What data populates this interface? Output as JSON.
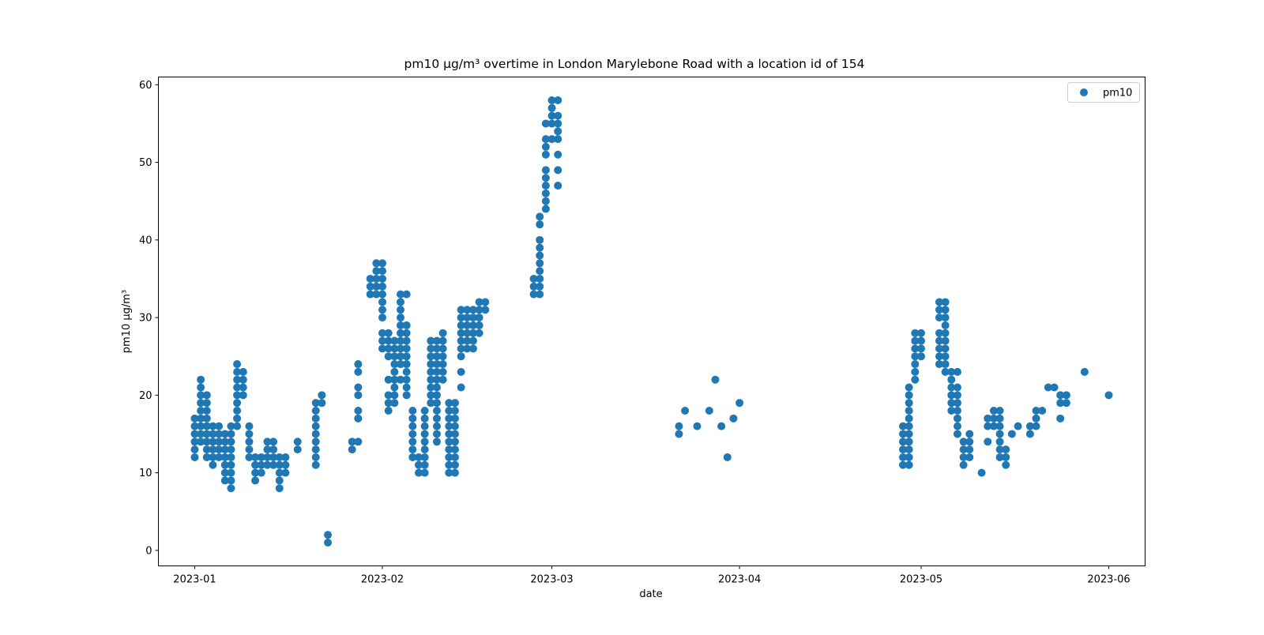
{
  "chart_data": {
    "type": "scatter",
    "title": "pm10 µg/m³ overtime in London Marylebone Road with a location id of 154",
    "xlabel": "date",
    "ylabel": "pm10 µg/m³",
    "x_axis": "date",
    "xlim": [
      "2022-12-26",
      "2023-06-07"
    ],
    "ylim": [
      -2,
      61
    ],
    "x_ticks": [
      "2023-01",
      "2023-02",
      "2023-03",
      "2023-04",
      "2023-05",
      "2023-06"
    ],
    "y_ticks": [
      0,
      10,
      20,
      30,
      40,
      50,
      60
    ],
    "grid": false,
    "legend": {
      "placement": "top-right",
      "entries": [
        "pm10"
      ]
    },
    "colors": {
      "series": "#1f77b4"
    },
    "series": [
      {
        "name": "pm10",
        "points": [
          {
            "x": "2023-01-01",
            "y": [
              12,
              13,
              14,
              15,
              16,
              17
            ]
          },
          {
            "x": "2023-01-02",
            "y": [
              14,
              15,
              16,
              17,
              18,
              19,
              20,
              21,
              22
            ]
          },
          {
            "x": "2023-01-03",
            "y": [
              12,
              13,
              14,
              15,
              16,
              17,
              18,
              19,
              20
            ]
          },
          {
            "x": "2023-01-04",
            "y": [
              11,
              12,
              13,
              14,
              15,
              16
            ]
          },
          {
            "x": "2023-01-05",
            "y": [
              12,
              13,
              14,
              15,
              16
            ]
          },
          {
            "x": "2023-01-06",
            "y": [
              9,
              10,
              11,
              12,
              13,
              14,
              15
            ]
          },
          {
            "x": "2023-01-07",
            "y": [
              8,
              9,
              10,
              11,
              12,
              13,
              14,
              15,
              16
            ]
          },
          {
            "x": "2023-01-08",
            "y": [
              16,
              17,
              18,
              19,
              20,
              21,
              22,
              23,
              24
            ]
          },
          {
            "x": "2023-01-09",
            "y": [
              20,
              21,
              22,
              23
            ]
          },
          {
            "x": "2023-01-10",
            "y": [
              12,
              13,
              14,
              15,
              16
            ]
          },
          {
            "x": "2023-01-11",
            "y": [
              9,
              10,
              11,
              12
            ]
          },
          {
            "x": "2023-01-12",
            "y": [
              10,
              11,
              12
            ]
          },
          {
            "x": "2023-01-13",
            "y": [
              11,
              12,
              13,
              14
            ]
          },
          {
            "x": "2023-01-14",
            "y": [
              11,
              12,
              13,
              14
            ]
          },
          {
            "x": "2023-01-15",
            "y": [
              8,
              9,
              10,
              11,
              12
            ]
          },
          {
            "x": "2023-01-16",
            "y": [
              10,
              11,
              12
            ]
          },
          {
            "x": "2023-01-18",
            "y": [
              13,
              14
            ]
          },
          {
            "x": "2023-01-21",
            "y": [
              11,
              12,
              13,
              14,
              15,
              16,
              17,
              18,
              19
            ]
          },
          {
            "x": "2023-01-22",
            "y": [
              19,
              20
            ]
          },
          {
            "x": "2023-01-23",
            "y": [
              1,
              2
            ]
          },
          {
            "x": "2023-01-27",
            "y": [
              13,
              14
            ]
          },
          {
            "x": "2023-01-28",
            "y": [
              14,
              17,
              18,
              20,
              21,
              23,
              24
            ]
          },
          {
            "x": "2023-01-30",
            "y": [
              33,
              34,
              35
            ]
          },
          {
            "x": "2023-01-31",
            "y": [
              33,
              34,
              35,
              36,
              37
            ]
          },
          {
            "x": "2023-02-01",
            "y": [
              26,
              27,
              28,
              30,
              31,
              32,
              33,
              34,
              35,
              36,
              37
            ]
          },
          {
            "x": "2023-02-02",
            "y": [
              18,
              19,
              20,
              22,
              25,
              26,
              27,
              28
            ]
          },
          {
            "x": "2023-02-03",
            "y": [
              19,
              20,
              21,
              22,
              23,
              24,
              25,
              26,
              27
            ]
          },
          {
            "x": "2023-02-04",
            "y": [
              22,
              24,
              25,
              26,
              27,
              28,
              29,
              30,
              31,
              32,
              33
            ]
          },
          {
            "x": "2023-02-05",
            "y": [
              20,
              21,
              22,
              23,
              24,
              25,
              26,
              27,
              28,
              29,
              33
            ]
          },
          {
            "x": "2023-02-06",
            "y": [
              12,
              13,
              14,
              15,
              16,
              17,
              18
            ]
          },
          {
            "x": "2023-02-07",
            "y": [
              10,
              11,
              12
            ]
          },
          {
            "x": "2023-02-08",
            "y": [
              10,
              11,
              12,
              13,
              14,
              15,
              16,
              17,
              18
            ]
          },
          {
            "x": "2023-02-09",
            "y": [
              19,
              20,
              21,
              22,
              23,
              24,
              25,
              26,
              27
            ]
          },
          {
            "x": "2023-02-10",
            "y": [
              14,
              15,
              16,
              17,
              18,
              19,
              20,
              21,
              22,
              23,
              24,
              25,
              26,
              27
            ]
          },
          {
            "x": "2023-02-11",
            "y": [
              22,
              23,
              24,
              25,
              26,
              27,
              28
            ]
          },
          {
            "x": "2023-02-12",
            "y": [
              10,
              11,
              12,
              13,
              14,
              15,
              16,
              17,
              18,
              19
            ]
          },
          {
            "x": "2023-02-13",
            "y": [
              10,
              11,
              12,
              13,
              14,
              15,
              16,
              17,
              18,
              19
            ]
          },
          {
            "x": "2023-02-14",
            "y": [
              21,
              23,
              25,
              26,
              27,
              28,
              29,
              30,
              31
            ]
          },
          {
            "x": "2023-02-15",
            "y": [
              26,
              27,
              28,
              29,
              30,
              31
            ]
          },
          {
            "x": "2023-02-16",
            "y": [
              26,
              27,
              28,
              29,
              30,
              31
            ]
          },
          {
            "x": "2023-02-17",
            "y": [
              28,
              29,
              30,
              31,
              32
            ]
          },
          {
            "x": "2023-02-18",
            "y": [
              31,
              32
            ]
          },
          {
            "x": "2023-02-26",
            "y": [
              33,
              34,
              35
            ]
          },
          {
            "x": "2023-02-27",
            "y": [
              33,
              34,
              35,
              36,
              37,
              38,
              39,
              40,
              42,
              43
            ]
          },
          {
            "x": "2023-02-28",
            "y": [
              44,
              45,
              46,
              47,
              48,
              49,
              51,
              52,
              53,
              55
            ]
          },
          {
            "x": "2023-03-01",
            "y": [
              53,
              55,
              56,
              57,
              58
            ]
          },
          {
            "x": "2023-03-02",
            "y": [
              47,
              49,
              51,
              53,
              54,
              55,
              56,
              58
            ]
          },
          {
            "x": "2023-03-22",
            "y": [
              15,
              16
            ]
          },
          {
            "x": "2023-03-23",
            "y": [
              18
            ]
          },
          {
            "x": "2023-03-25",
            "y": [
              16
            ]
          },
          {
            "x": "2023-03-27",
            "y": [
              18
            ]
          },
          {
            "x": "2023-03-28",
            "y": [
              22
            ]
          },
          {
            "x": "2023-03-29",
            "y": [
              16
            ]
          },
          {
            "x": "2023-03-30",
            "y": [
              12
            ]
          },
          {
            "x": "2023-03-31",
            "y": [
              17
            ]
          },
          {
            "x": "2023-04-01",
            "y": [
              19
            ]
          },
          {
            "x": "2023-04-28",
            "y": [
              11,
              12,
              13,
              14,
              15,
              16
            ]
          },
          {
            "x": "2023-04-29",
            "y": [
              11,
              12,
              13,
              14,
              15,
              16,
              17,
              18,
              19,
              20,
              21
            ]
          },
          {
            "x": "2023-04-30",
            "y": [
              22,
              23,
              24,
              25,
              26,
              27,
              28
            ]
          },
          {
            "x": "2023-05-01",
            "y": [
              25,
              26,
              27,
              28
            ]
          },
          {
            "x": "2023-05-04",
            "y": [
              24,
              25,
              26,
              27,
              28,
              30,
              31,
              32
            ]
          },
          {
            "x": "2023-05-05",
            "y": [
              23,
              24,
              25,
              26,
              27,
              28,
              29,
              30,
              31,
              32
            ]
          },
          {
            "x": "2023-05-06",
            "y": [
              18,
              19,
              20,
              21,
              22,
              23
            ]
          },
          {
            "x": "2023-05-07",
            "y": [
              15,
              16,
              17,
              18,
              19,
              20,
              21,
              23
            ]
          },
          {
            "x": "2023-05-08",
            "y": [
              11,
              12,
              13,
              14
            ]
          },
          {
            "x": "2023-05-09",
            "y": [
              12,
              13,
              14,
              15
            ]
          },
          {
            "x": "2023-05-11",
            "y": [
              10
            ]
          },
          {
            "x": "2023-05-12",
            "y": [
              14,
              16,
              17
            ]
          },
          {
            "x": "2023-05-13",
            "y": [
              16,
              17,
              18
            ]
          },
          {
            "x": "2023-05-14",
            "y": [
              12,
              13,
              14,
              15,
              16,
              17,
              18
            ]
          },
          {
            "x": "2023-05-15",
            "y": [
              11,
              12,
              13
            ]
          },
          {
            "x": "2023-05-16",
            "y": [
              15
            ]
          },
          {
            "x": "2023-05-17",
            "y": [
              16
            ]
          },
          {
            "x": "2023-05-19",
            "y": [
              15,
              16
            ]
          },
          {
            "x": "2023-05-20",
            "y": [
              16,
              17,
              18
            ]
          },
          {
            "x": "2023-05-21",
            "y": [
              18
            ]
          },
          {
            "x": "2023-05-22",
            "y": [
              21
            ]
          },
          {
            "x": "2023-05-23",
            "y": [
              21
            ]
          },
          {
            "x": "2023-05-24",
            "y": [
              17,
              19,
              20
            ]
          },
          {
            "x": "2023-05-25",
            "y": [
              19,
              20
            ]
          },
          {
            "x": "2023-05-28",
            "y": [
              23
            ]
          },
          {
            "x": "2023-06-01",
            "y": [
              20
            ]
          }
        ]
      }
    ]
  }
}
